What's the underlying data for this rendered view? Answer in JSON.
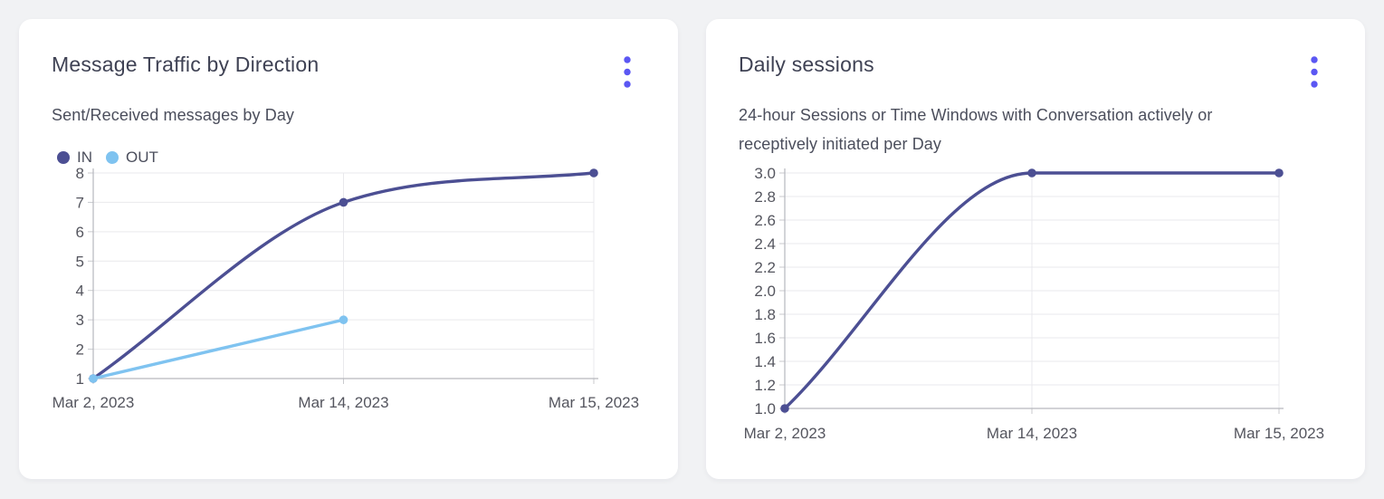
{
  "page_background": "#f1f2f4",
  "colors": {
    "card_background": "#ffffff",
    "menu_accent": "#5b57f3",
    "title_text": "#3f4254",
    "subtitle_text": "#4b4e5c",
    "axis_text": "#54555e",
    "gridline": "#e9e9ec",
    "axis_line": "#b6b7bd",
    "tick_line": "#c9cace"
  },
  "cards": [
    {
      "title": "Message Traffic by Direction",
      "subtitle": "Sent/Received messages by Day",
      "menu_icon": "kebab-menu",
      "chart_data": {
        "type": "line",
        "title": "Message Traffic by Direction",
        "categories": [
          "Mar 2, 2023",
          "Mar 14, 2023",
          "Mar 15, 2023"
        ],
        "series": [
          {
            "name": "IN",
            "color": "#4c4f93",
            "values": [
              1,
              7,
              8
            ]
          },
          {
            "name": "OUT",
            "color": "#7fc3f0",
            "values": [
              1,
              3,
              null
            ]
          }
        ],
        "xlabel": "",
        "ylabel": "",
        "ylim": [
          1,
          8
        ],
        "yticks": [
          1,
          2,
          3,
          4,
          5,
          6,
          7,
          8
        ],
        "ytick_decimals": 0,
        "grid": true,
        "smooth": true,
        "legend_position": "top-left",
        "legend": [
          "IN",
          "OUT"
        ]
      }
    },
    {
      "title": "Daily sessions",
      "subtitle": "24-hour Sessions or Time Windows with Conversation actively or receptively initiated per Day",
      "menu_icon": "kebab-menu",
      "chart_data": {
        "type": "line",
        "title": "Daily sessions",
        "categories": [
          "Mar 2, 2023",
          "Mar 14, 2023",
          "Mar 15, 2023"
        ],
        "series": [
          {
            "name": "Daily sessions",
            "color": "#4c4f93",
            "values": [
              1.0,
              3.0,
              3.0
            ]
          }
        ],
        "xlabel": "",
        "ylabel": "",
        "ylim": [
          1.0,
          3.0
        ],
        "yticks": [
          1.0,
          1.2,
          1.4,
          1.6,
          1.8,
          2.0,
          2.2,
          2.4,
          2.6,
          2.8,
          3.0
        ],
        "ytick_decimals": 1,
        "grid": true,
        "smooth": true,
        "legend_position": "none",
        "legend": []
      }
    }
  ]
}
